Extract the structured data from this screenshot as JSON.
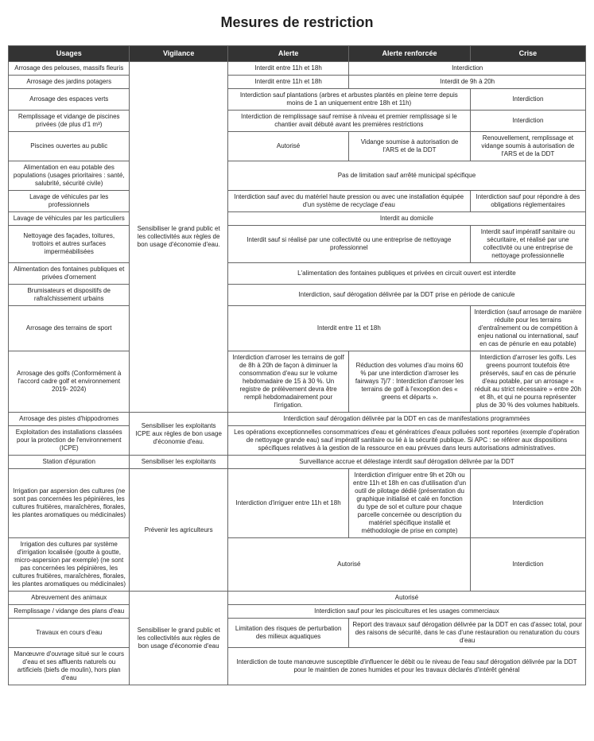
{
  "title": "Mesures de restriction",
  "headers": {
    "usages": "Usages",
    "vigilance": "Vigilance",
    "alerte": "Alerte",
    "renforcee": "Alerte renforcée",
    "crise": "Crise"
  },
  "vigilance": {
    "sensibiliser_public": "Sensibiliser le grand public et les collectivités aux règles de bon usage d'économie d'eau.",
    "sensibiliser_icpe": "Sensibiliser les exploitants ICPE aux règles de bon usage d'économie d'eau.",
    "sensibiliser_exploitants": "Sensibiliser les exploitants",
    "prevenir_agriculteurs": "Prévenir les agriculteurs",
    "sensibiliser_public2": "Sensibiliser le grand public et les collectivités aux règles de bon usage d'économie d'eau"
  },
  "rows": {
    "pelouses": {
      "u": "Arrosage des pelouses, massifs fleuris",
      "a": "Interdit entre 11h et 18h",
      "rc": "Interdiction"
    },
    "potagers": {
      "u": "Arrosage des jardins potagers",
      "a": "Interdit entre 11h et 18h",
      "rc": "Interdit de 9h à 20h"
    },
    "espaces_verts": {
      "u": "Arrosage des espaces verts",
      "ar": "Interdiction sauf plantations (arbres et arbustes plantés en pleine terre depuis moins de 1 an uniquement entre 18h et 11h)",
      "c": "Interdiction"
    },
    "piscines_priv": {
      "u": "Remplissage et vidange de piscines privées (de plus d'1 m³)",
      "ar": "Interdiction de remplissage sauf remise à niveau et premier remplissage si le chantier avait débuté avant les premières restrictions",
      "c": "Interdiction"
    },
    "piscines_pub": {
      "u": "Piscines ouvertes au public",
      "a": "Autorisé",
      "r": "Vidange soumise à autorisation de l'ARS et de la DDT",
      "c": "Renouvellement, remplissage et vidange soumis à autorisation de l'ARS et de la DDT"
    },
    "eau_potable": {
      "u": "Alimentation en eau potable des populations (usages prioritaires : santé, salubrité, sécurité civile)",
      "arc": "Pas de limitation sauf arrêté municipal spécifique"
    },
    "lavage_pro": {
      "u": "Lavage de véhicules par les professionnels",
      "ar": "Interdiction sauf avec du matériel haute pression ou avec une installation équipée d'un système de recyclage d'eau",
      "c": "Interdiction sauf  pour répondre à des obligations réglementaires"
    },
    "lavage_part": {
      "u": "Lavage de véhicules par les particuliers",
      "arc": "Interdit au domicile"
    },
    "nettoyage": {
      "u": "Nettoyage des façades, toitures, trottoirs et autres surfaces imperméabilisées",
      "ar": "Interdit sauf si réalisé par une collectivité ou une entreprise de nettoyage professionnel",
      "c": "Interdit sauf impératif sanitaire ou sécuritaire, et réalisé par une collectivité ou une entreprise de nettoyage professionnelle"
    },
    "fontaines": {
      "u": "Alimentation des fontaines publiques et privées d'ornement",
      "arc": "L'alimentation des fontaines publiques et privées en circuit ouvert est interdite"
    },
    "brumisateurs": {
      "u": "Brumisateurs et dispositifs de rafraîchissement urbains",
      "arc": "Interdiction, sauf dérogation délivrée par la DDT prise en période de canicule"
    },
    "sport": {
      "u": "Arrosage des terrains de sport",
      "ar": "Interdit entre 11 et 18h",
      "c": "Interdiction (sauf arrosage de manière réduite pour les terrains d'entraînement ou de compétition à enjeu national ou international, sauf en cas de pénurie en eau potable)"
    },
    "golfs": {
      "u": "Arrosage des golfs (Conformément à l'accord cadre golf et environnement 2019- 2024)",
      "a": "Interdiction d'arroser les terrains de golf de 8h à 20h de façon à diminuer la consommation d'eau sur le volume hebdomadaire de 15 à 30 %. Un registre de prélèvement devra être rempli hebdomadairement pour l'irrigation.",
      "r": "Réduction des volumes d'au moins 60 % par une interdiction d'arroser les fairways 7j/7 : Interdiction d'arroser les terrains de golf à l'exception des « greens et départs ».",
      "c": "Interdiction d'arroser les golfs. Les greens pourront toutefois être préservés, sauf en cas de pénurie d'eau potable, par un arrosage « réduit au strict nécessaire » entre 20h et 8h, et qui ne pourra représenter plus de 30 % des volumes habituels."
    },
    "hippodromes": {
      "u": "Arrosage des pistes d'hippodromes",
      "arc": "Interdiction sauf dérogation délivrée par la DDT en cas de manifestations programmées"
    },
    "icpe": {
      "u": "Exploitation des installations classées pour la protection de l'environnement (ICPE)",
      "arc": "Les opérations exceptionnelles consommatrices d'eau et génératrices d'eaux polluées sont reportées (exemple d'opération de nettoyage grande eau) sauf impératif sanitaire ou lié à la sécurité publique. Si APC : se référer aux dispositions spécifiques relatives à la gestion de la ressource en eau prévues dans leurs autorisations administratives."
    },
    "epuration": {
      "u": "Station d'épuration",
      "arc": "Surveillance accrue et délestage interdit sauf dérogation délivrée par la DDT"
    },
    "irrigation_asp": {
      "u": "Irrigation par aspersion des cultures (ne sont pas concernées les pépinières, les cultures fruitières, maraîchères, florales, les plantes aromatiques ou médicinales)",
      "a": "Interdiction d'irriguer entre 11h et 18h",
      "r": "Interdiction d'irriguer entre 9h et 20h ou entre 11h et 18h en cas d'utilisation d'un outil de pilotage dédié (présentation du graphique initialisé et calé en fonction du type de sol et culture pour chaque parcelle concernée ou description du matériel spécifique installé et méthodologie de prise en compte)",
      "c": "Interdiction"
    },
    "irrigation_loc": {
      "u": "Irrigation des cultures par système d'irrigation localisée (goutte à goutte, micro-aspersion par exemple) (ne sont pas concernées les pépinières, les cultures fruitières, maraîchères, florales, les plantes aromatiques ou médicinales)",
      "ar": "Autorisé",
      "c": "Interdiction"
    },
    "abreuvement": {
      "u": "Abreuvement des animaux",
      "arc": "Autorisé"
    },
    "plans_eau": {
      "u": "Remplissage / vidange des plans d'eau",
      "arc": "Interdiction sauf pour les piscicultures et les usages commerciaux"
    },
    "travaux": {
      "u": "Travaux en cours d'eau",
      "a": "Limitation des risques de perturbation des milieux aquatiques",
      "rc": "Report des travaux sauf dérogation délivrée par la DDT en cas d'assec total, pour des raisons de sécurité, dans le cas d'une restauration ou renaturation du cours d'eau"
    },
    "manoeuvre": {
      "u": "Manœuvre d'ouvrage situé sur le cours d'eau et ses affluents naturels ou artificiels (biefs de moulin), hors plan d'eau",
      "arc": "Interdiction de toute manœuvre susceptible d'influencer le débit ou le niveau de l'eau sauf dérogation délivrée par la DDT pour le maintien de zones humides et pour les travaux déclarés d'intérêt général"
    }
  }
}
